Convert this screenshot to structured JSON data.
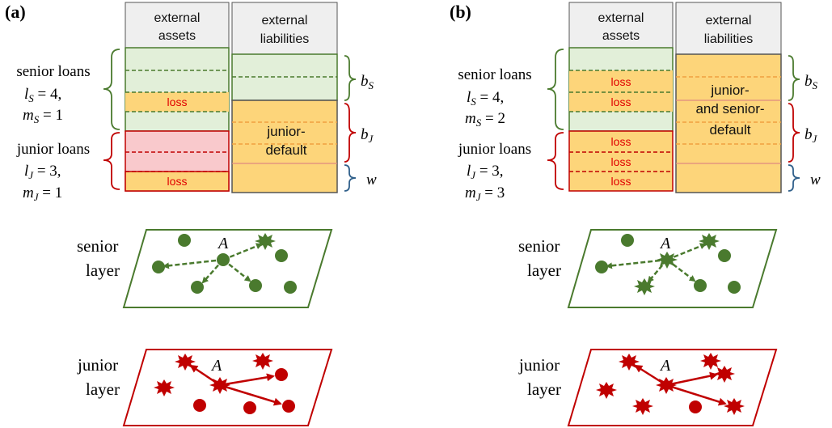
{
  "panels": [
    {
      "label": "(a)",
      "assets_header": [
        "external",
        "assets"
      ],
      "liabilities_header": [
        "external",
        "liabilities"
      ],
      "senior": {
        "title": "senior loans",
        "l": "l",
        "l_sub": "S",
        "l_val": " = 4,",
        "m": "m",
        "m_sub": "S",
        "m_val": " = 1"
      },
      "junior": {
        "title": "junior loans",
        "l": "l",
        "l_sub": "J",
        "l_val": " = 3,",
        "m": "m",
        "m_sub": "J",
        "m_val": " = 1"
      },
      "loss_texts": [
        "loss",
        "loss"
      ],
      "default_text": [
        "junior-",
        "default"
      ],
      "brace_labels": {
        "bS": "b",
        "bS_sub": "S",
        "bJ": "b",
        "bJ_sub": "J",
        "w": "w"
      },
      "senior_layer": [
        "senior",
        "layer"
      ],
      "junior_layer": [
        "junior",
        "layer"
      ],
      "node_label_senior": "A",
      "node_label_junior": "A"
    },
    {
      "label": "(b)",
      "assets_header": [
        "external",
        "assets"
      ],
      "liabilities_header": [
        "external",
        "liabilities"
      ],
      "senior": {
        "title": "senior loans",
        "l": "l",
        "l_sub": "S",
        "l_val": " = 4,",
        "m": "m",
        "m_sub": "S",
        "m_val": " = 2"
      },
      "junior": {
        "title": "junior loans",
        "l": "l",
        "l_sub": "J",
        "l_val": " = 3,",
        "m": "m",
        "m_sub": "J",
        "m_val": " = 3"
      },
      "loss_texts": [
        "loss",
        "loss",
        "loss",
        "loss",
        "loss"
      ],
      "default_text": [
        "junior-",
        "and senior-",
        "default"
      ],
      "brace_labels": {
        "bS": "b",
        "bS_sub": "S",
        "bJ": "b",
        "bJ_sub": "J",
        "w": "w"
      },
      "senior_layer": [
        "senior",
        "layer"
      ],
      "junior_layer": [
        "junior",
        "layer"
      ],
      "node_label_senior": "A",
      "node_label_junior": "A"
    }
  ],
  "colors": {
    "green": "#4a7a2e",
    "green_fill": "#e2efd9",
    "red": "#c00000",
    "red_fill": "#f9c9cc",
    "yellow_fill": "#fdd57a",
    "orange_dash": "#f0a040",
    "header_fill": "#efefef",
    "blue": "#2f5f8a"
  }
}
